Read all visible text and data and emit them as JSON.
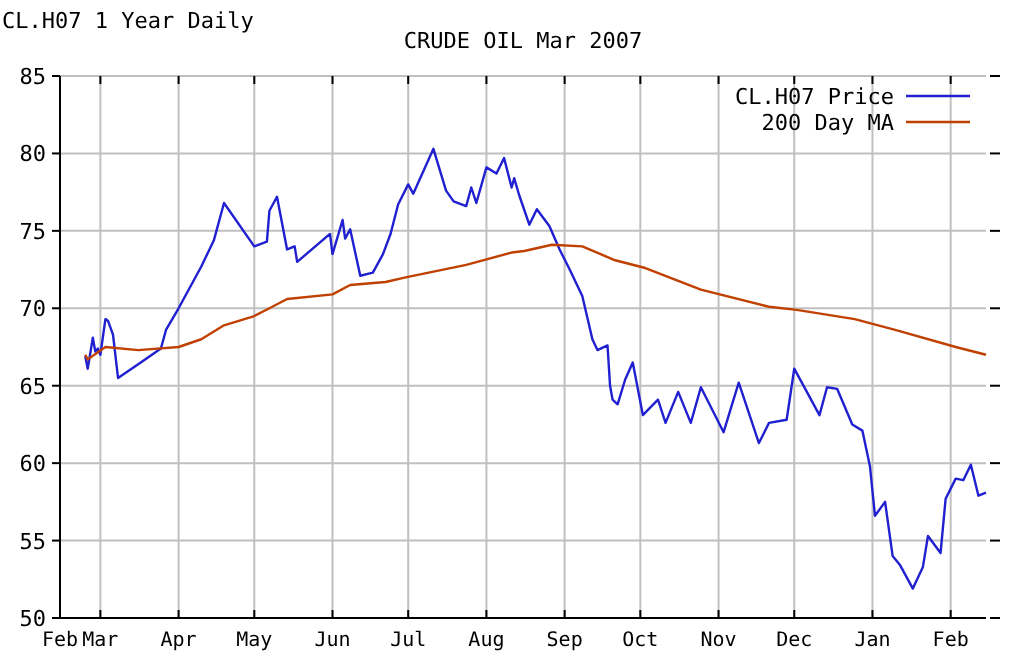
{
  "chart_data": {
    "type": "line",
    "title": "CRUDE OIL Mar 2007",
    "subtitle": "CL.H07 1 Year Daily",
    "xlim": [
      "2006-02-13",
      "2007-02-15"
    ],
    "xticks": [
      {
        "value": "2006-02-13",
        "label": "Feb"
      },
      {
        "value": "2006-03-01",
        "label": "Mar"
      },
      {
        "value": "2006-04-01",
        "label": "Apr"
      },
      {
        "value": "2006-05-01",
        "label": "May"
      },
      {
        "value": "2006-06-01",
        "label": "Jun"
      },
      {
        "value": "2006-07-01",
        "label": "Jul"
      },
      {
        "value": "2006-08-01",
        "label": "Aug"
      },
      {
        "value": "2006-09-01",
        "label": "Sep"
      },
      {
        "value": "2006-10-01",
        "label": "Oct"
      },
      {
        "value": "2006-11-01",
        "label": "Nov"
      },
      {
        "value": "2006-12-01",
        "label": "Dec"
      },
      {
        "value": "2007-01-01",
        "label": "Jan"
      },
      {
        "value": "2007-02-01",
        "label": "Feb"
      }
    ],
    "ylim": [
      50,
      85
    ],
    "yticks": [
      50,
      55,
      60,
      65,
      70,
      75,
      80,
      85
    ],
    "grid": true,
    "legend": "top right",
    "marker": "none",
    "line_style": "solid",
    "series": [
      {
        "name": "CL.H07 Price",
        "color": "#2020d0",
        "x": [
          "2006-02-23",
          "2006-02-24",
          "2006-02-26",
          "2006-02-27",
          "2006-02-28",
          "2006-03-01",
          "2006-03-03",
          "2006-03-04",
          "2006-03-06",
          "2006-03-08",
          "2006-03-17",
          "2006-03-25",
          "2006-03-27",
          "2006-04-01",
          "2006-04-10",
          "2006-04-15",
          "2006-04-19",
          "2006-05-01",
          "2006-05-06",
          "2006-05-07",
          "2006-05-10",
          "2006-05-14",
          "2006-05-17",
          "2006-05-18",
          "2006-05-31",
          "2006-06-01",
          "2006-06-05",
          "2006-06-06",
          "2006-06-08",
          "2006-06-12",
          "2006-06-17",
          "2006-06-21",
          "2006-06-24",
          "2006-06-27",
          "2006-07-01",
          "2006-07-03",
          "2006-07-11",
          "2006-07-16",
          "2006-07-19",
          "2006-07-24",
          "2006-07-26",
          "2006-07-28",
          "2006-08-01",
          "2006-08-05",
          "2006-08-08",
          "2006-08-11",
          "2006-08-12",
          "2006-08-14",
          "2006-08-18",
          "2006-08-21",
          "2006-08-26",
          "2006-08-30",
          "2006-09-03",
          "2006-09-08",
          "2006-09-12",
          "2006-09-14",
          "2006-09-18",
          "2006-09-19",
          "2006-09-20",
          "2006-09-22",
          "2006-09-25",
          "2006-09-28",
          "2006-10-02",
          "2006-10-08",
          "2006-10-11",
          "2006-10-16",
          "2006-10-21",
          "2006-10-25",
          "2006-11-03",
          "2006-11-09",
          "2006-11-17",
          "2006-11-21",
          "2006-11-28",
          "2006-12-01",
          "2006-12-11",
          "2006-12-14",
          "2006-12-18",
          "2006-12-24",
          "2006-12-28",
          "2006-12-31",
          "2007-01-02",
          "2007-01-06",
          "2007-01-09",
          "2007-01-12",
          "2007-01-17",
          "2007-01-21",
          "2007-01-23",
          "2007-01-28",
          "2007-01-30",
          "2007-02-03",
          "2007-02-06",
          "2007-02-09",
          "2007-02-12",
          "2007-02-15"
        ],
        "values": [
          66.9,
          66.1,
          68.1,
          67.2,
          67.4,
          67.0,
          69.3,
          69.2,
          68.3,
          65.5,
          66.5,
          67.4,
          68.6,
          70.0,
          72.7,
          74.4,
          76.8,
          74.0,
          74.3,
          76.3,
          77.2,
          73.8,
          74.0,
          73.0,
          74.8,
          73.5,
          75.7,
          74.5,
          75.1,
          72.1,
          72.3,
          73.5,
          74.8,
          76.7,
          78.0,
          77.4,
          80.3,
          77.6,
          76.9,
          76.6,
          77.8,
          76.8,
          79.1,
          78.7,
          79.7,
          77.8,
          78.4,
          77.3,
          75.4,
          76.4,
          75.3,
          73.8,
          72.5,
          70.8,
          68.0,
          67.3,
          67.6,
          65.0,
          64.1,
          63.8,
          65.4,
          66.5,
          63.1,
          64.1,
          62.6,
          64.6,
          62.6,
          64.9,
          62.0,
          65.2,
          61.3,
          62.6,
          62.8,
          66.1,
          63.1,
          64.9,
          64.8,
          62.5,
          62.1,
          59.8,
          56.6,
          57.5,
          54.0,
          53.4,
          51.9,
          53.3,
          55.3,
          54.2,
          57.7,
          59.0,
          58.9,
          59.9,
          57.9,
          58.1
        ]
      },
      {
        "name": "200 Day MA",
        "color": "#c04000",
        "x": [
          "2006-02-23",
          "2006-02-24",
          "2006-03-03",
          "2006-03-16",
          "2006-04-01",
          "2006-04-10",
          "2006-04-19",
          "2006-05-01",
          "2006-05-07",
          "2006-05-14",
          "2006-06-01",
          "2006-06-08",
          "2006-06-22",
          "2006-06-30",
          "2006-07-24",
          "2006-08-11",
          "2006-08-16",
          "2006-08-27",
          "2006-09-08",
          "2006-09-21",
          "2006-10-03",
          "2006-10-25",
          "2006-11-21",
          "2006-12-02",
          "2006-12-25",
          "2007-01-10",
          "2007-02-03",
          "2007-02-15"
        ],
        "values": [
          67.0,
          66.7,
          67.5,
          67.3,
          67.5,
          68.0,
          68.9,
          69.5,
          70.0,
          70.6,
          70.9,
          71.5,
          71.7,
          72.0,
          72.8,
          73.6,
          73.7,
          74.1,
          74.0,
          73.1,
          72.6,
          71.2,
          70.1,
          69.9,
          69.3,
          68.6,
          67.5,
          67.0
        ]
      }
    ]
  }
}
